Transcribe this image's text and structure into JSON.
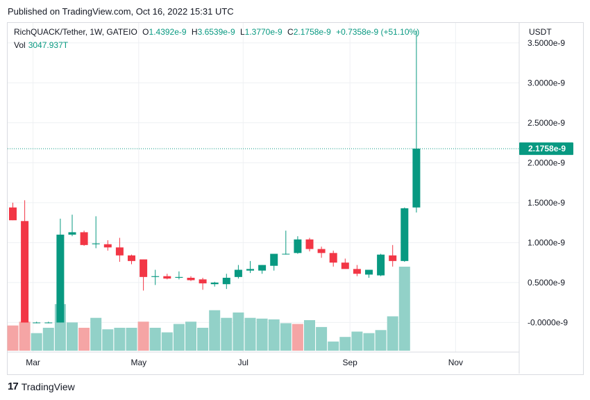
{
  "header": {
    "published": "Published on TradingView.com, Oct 16, 2022 15:31 UTC"
  },
  "legend": {
    "symbol": "RichQUACK/Tether, 1W, GATEIO",
    "open_label": "O",
    "open": "1.4392e-9",
    "high_label": "H",
    "high": "3.6539e-9",
    "low_label": "L",
    "low": "1.3770e-9",
    "close_label": "C",
    "close": "2.1758e-9",
    "change": "+0.7358e-9 (+51.10%)",
    "vol_label": "Vol",
    "vol": "3047.937T"
  },
  "currency": "USDT",
  "footer": {
    "logo_mark": "17",
    "logo_text": "TradingView"
  },
  "colors": {
    "up": "#089981",
    "down": "#f23645",
    "vol_up": "#92d1c8",
    "vol_down": "#f5a5a5",
    "grid": "#eef0f3",
    "text": "#131722",
    "price_line": "#089981"
  },
  "chart_data": {
    "type": "candlestick",
    "title": "RichQUACK/Tether, 1W, GATEIO",
    "ylabel": "USDT",
    "ylim": [
      -0.37,
      3.75
    ],
    "yticks": [
      "3.5000e-9",
      "3.0000e-9",
      "2.5000e-9",
      "2.0000e-9",
      "1.5000e-9",
      "1.0000e-9",
      "0.5000e-9",
      "-0.0000e-9"
    ],
    "ytick_values": [
      3.5,
      3.0,
      2.5,
      2.0,
      1.5,
      1.0,
      0.5,
      0.0
    ],
    "xticks": [
      "Mar",
      "May",
      "Jul",
      "Sep",
      "Nov"
    ],
    "xtick_index": [
      1,
      9.9,
      18.7,
      27.7,
      36.6
    ],
    "last_price_label": "2.1758e-9",
    "last_price": 2.1758,
    "candles": [
      {
        "o": 1.44,
        "h": 1.5,
        "l": 1.28,
        "c": 1.28
      },
      {
        "o": 1.27,
        "h": 1.53,
        "l": 0.0,
        "c": 0.0
      },
      {
        "o": 0.0,
        "h": 0.01,
        "l": -0.01,
        "c": 0.0
      },
      {
        "o": 0.0,
        "h": 0.01,
        "l": -0.01,
        "c": 0.0
      },
      {
        "o": 0.0,
        "h": 1.3,
        "l": 0.0,
        "c": 1.1
      },
      {
        "o": 1.1,
        "h": 1.35,
        "l": 1.08,
        "c": 1.13
      },
      {
        "o": 1.13,
        "h": 1.15,
        "l": 0.96,
        "c": 0.97
      },
      {
        "o": 0.98,
        "h": 1.33,
        "l": 0.93,
        "c": 0.99
      },
      {
        "o": 0.98,
        "h": 1.03,
        "l": 0.9,
        "c": 0.94
      },
      {
        "o": 0.94,
        "h": 1.06,
        "l": 0.76,
        "c": 0.84
      },
      {
        "o": 0.84,
        "h": 0.85,
        "l": 0.73,
        "c": 0.77
      },
      {
        "o": 0.79,
        "h": 0.79,
        "l": 0.4,
        "c": 0.57
      },
      {
        "o": 0.57,
        "h": 0.66,
        "l": 0.47,
        "c": 0.58
      },
      {
        "o": 0.58,
        "h": 0.61,
        "l": 0.54,
        "c": 0.55
      },
      {
        "o": 0.56,
        "h": 0.64,
        "l": 0.54,
        "c": 0.57
      },
      {
        "o": 0.56,
        "h": 0.58,
        "l": 0.52,
        "c": 0.53
      },
      {
        "o": 0.54,
        "h": 0.56,
        "l": 0.41,
        "c": 0.49
      },
      {
        "o": 0.48,
        "h": 0.51,
        "l": 0.45,
        "c": 0.5
      },
      {
        "o": 0.48,
        "h": 0.61,
        "l": 0.42,
        "c": 0.56
      },
      {
        "o": 0.57,
        "h": 0.72,
        "l": 0.55,
        "c": 0.66
      },
      {
        "o": 0.65,
        "h": 0.77,
        "l": 0.62,
        "c": 0.67
      },
      {
        "o": 0.65,
        "h": 0.72,
        "l": 0.61,
        "c": 0.72
      },
      {
        "o": 0.71,
        "h": 0.84,
        "l": 0.65,
        "c": 0.86
      },
      {
        "o": 0.86,
        "h": 1.15,
        "l": 0.85,
        "c": 0.86
      },
      {
        "o": 0.87,
        "h": 1.08,
        "l": 0.86,
        "c": 1.04
      },
      {
        "o": 1.04,
        "h": 1.06,
        "l": 0.89,
        "c": 0.92
      },
      {
        "o": 0.92,
        "h": 0.95,
        "l": 0.81,
        "c": 0.87
      },
      {
        "o": 0.87,
        "h": 0.9,
        "l": 0.7,
        "c": 0.75
      },
      {
        "o": 0.75,
        "h": 0.8,
        "l": 0.68,
        "c": 0.67
      },
      {
        "o": 0.67,
        "h": 0.72,
        "l": 0.58,
        "c": 0.61
      },
      {
        "o": 0.6,
        "h": 0.66,
        "l": 0.56,
        "c": 0.66
      },
      {
        "o": 0.59,
        "h": 0.86,
        "l": 0.58,
        "c": 0.85
      },
      {
        "o": 0.84,
        "h": 0.97,
        "l": 0.7,
        "c": 0.77
      },
      {
        "o": 0.77,
        "h": 1.44,
        "l": 0.76,
        "c": 1.43
      },
      {
        "o": 1.44,
        "h": 3.654,
        "l": 1.377,
        "c": 2.1758
      }
    ],
    "volume_label": "Vol",
    "volume": [
      {
        "v": 0.33,
        "up": false
      },
      {
        "v": 0.38,
        "up": false
      },
      {
        "v": 0.23,
        "up": true
      },
      {
        "v": 0.3,
        "up": true
      },
      {
        "v": 0.61,
        "up": true
      },
      {
        "v": 0.37,
        "up": true
      },
      {
        "v": 0.3,
        "up": false
      },
      {
        "v": 0.43,
        "up": true
      },
      {
        "v": 0.28,
        "up": true
      },
      {
        "v": 0.3,
        "up": true
      },
      {
        "v": 0.3,
        "up": true
      },
      {
        "v": 0.38,
        "up": false
      },
      {
        "v": 0.3,
        "up": true
      },
      {
        "v": 0.24,
        "up": true
      },
      {
        "v": 0.35,
        "up": true
      },
      {
        "v": 0.38,
        "up": true
      },
      {
        "v": 0.3,
        "up": true
      },
      {
        "v": 0.53,
        "up": true
      },
      {
        "v": 0.43,
        "up": true
      },
      {
        "v": 0.5,
        "up": true
      },
      {
        "v": 0.43,
        "up": true
      },
      {
        "v": 0.42,
        "up": true
      },
      {
        "v": 0.41,
        "up": true
      },
      {
        "v": 0.36,
        "up": true
      },
      {
        "v": 0.35,
        "up": false
      },
      {
        "v": 0.4,
        "up": true
      },
      {
        "v": 0.31,
        "up": true
      },
      {
        "v": 0.12,
        "up": true
      },
      {
        "v": 0.18,
        "up": true
      },
      {
        "v": 0.25,
        "up": true
      },
      {
        "v": 0.23,
        "up": true
      },
      {
        "v": 0.27,
        "up": true
      },
      {
        "v": 0.45,
        "up": true
      },
      {
        "v": 1.1,
        "up": true
      },
      {
        "v": 0.0,
        "up": true
      }
    ]
  }
}
